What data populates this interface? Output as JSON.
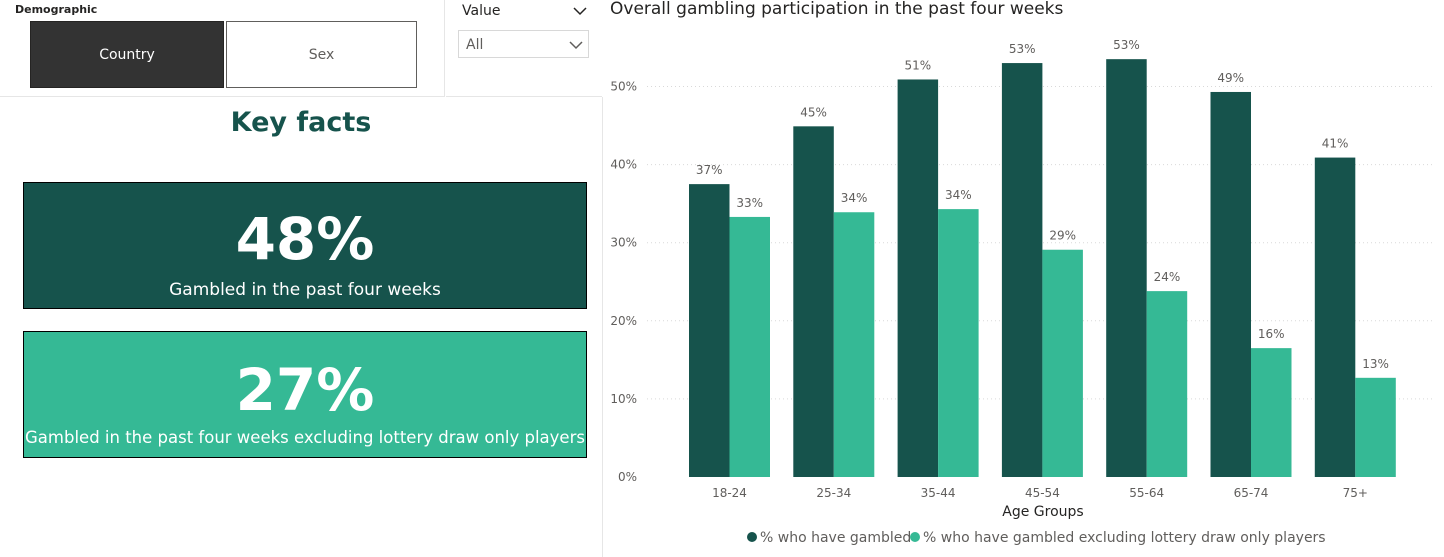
{
  "demographic": {
    "title": "Demographic",
    "options": [
      {
        "label": "Country",
        "selected": true
      },
      {
        "label": "Sex",
        "selected": false
      }
    ]
  },
  "value_slicer": {
    "title": "Value",
    "selected": "All"
  },
  "key_facts": {
    "heading": "Key facts",
    "cards": [
      {
        "value": "48%",
        "caption": "Gambled in the past four weeks",
        "color": "#16534c"
      },
      {
        "value": "27%",
        "caption": "Gambled in the past four weeks excluding lottery draw only players",
        "color": "#35b995"
      }
    ]
  },
  "icons": {
    "chevron": "chevron-down-icon"
  },
  "chart_data": {
    "type": "bar",
    "title": "Overall gambling participation in the past four weeks",
    "xlabel": "Age Groups",
    "ylabel": "",
    "categories": [
      "18-24",
      "25-34",
      "35-44",
      "45-54",
      "55-64",
      "65-74",
      "75+"
    ],
    "series": [
      {
        "name": "% who have gambled",
        "color": "#16534c",
        "values": [
          37.5,
          44.9,
          50.9,
          53.0,
          53.5,
          49.3,
          40.9
        ],
        "labels": [
          "37%",
          "45%",
          "51%",
          "53%",
          "53%",
          "49%",
          "41%"
        ]
      },
      {
        "name": "% who have gambled excluding lottery draw only players",
        "color": "#35b995",
        "values": [
          33.3,
          33.9,
          34.3,
          29.1,
          23.8,
          16.5,
          12.7
        ],
        "labels": [
          "33%",
          "34%",
          "34%",
          "29%",
          "24%",
          "16%",
          "13%"
        ]
      }
    ],
    "ylim": [
      0,
      60
    ],
    "yticks": [
      0,
      10,
      20,
      30,
      40,
      50
    ],
    "ytick_labels": [
      "0%",
      "10%",
      "20%",
      "30%",
      "40%",
      "50%"
    ],
    "grid": true,
    "legend": "bottom-center"
  }
}
